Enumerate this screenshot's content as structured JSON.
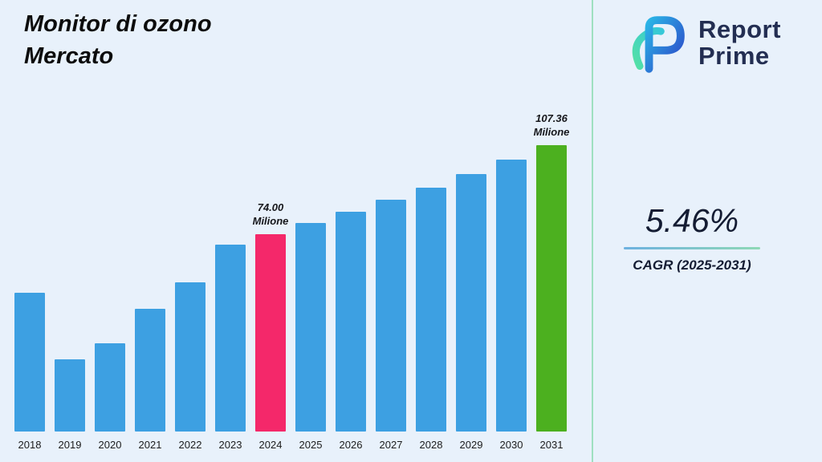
{
  "page": {
    "background_color": "#e8f1fb",
    "title_line1": "Monitor di ozono",
    "title_line2": "Mercato"
  },
  "logo": {
    "name": "Report Prime",
    "text_line1": "Report",
    "text_line2": "Prime",
    "colors": {
      "text": "#232e52",
      "blue": "#2b6de0",
      "green": "#45d6a4"
    }
  },
  "divider_color": "#9fe0c0",
  "stats": {
    "cagr_value": "5.46%",
    "cagr_label": "CAGR (2025-2031)"
  },
  "chart_data": {
    "type": "bar",
    "title": "Monitor di ozono Mercato",
    "unit": "Milione",
    "categories": [
      "2018",
      "2019",
      "2020",
      "2021",
      "2022",
      "2023",
      "2024",
      "2025",
      "2026",
      "2027",
      "2028",
      "2029",
      "2030",
      "2031"
    ],
    "values": [
      52,
      27,
      33,
      46,
      56,
      70,
      74.0,
      78.04,
      82.3,
      86.79,
      91.53,
      96.53,
      101.8,
      107.36
    ],
    "ylim": [
      0,
      110
    ],
    "grid": false,
    "legend": false,
    "bar_colors": {
      "default": "#3da0e2",
      "2024": "#f4286a",
      "2031": "#4cb01f"
    },
    "annotations": [
      {
        "category": "2024",
        "value_label": "74.00",
        "unit_label": "Milione"
      },
      {
        "category": "2031",
        "value_label": "107.36",
        "unit_label": "Milione"
      }
    ]
  }
}
